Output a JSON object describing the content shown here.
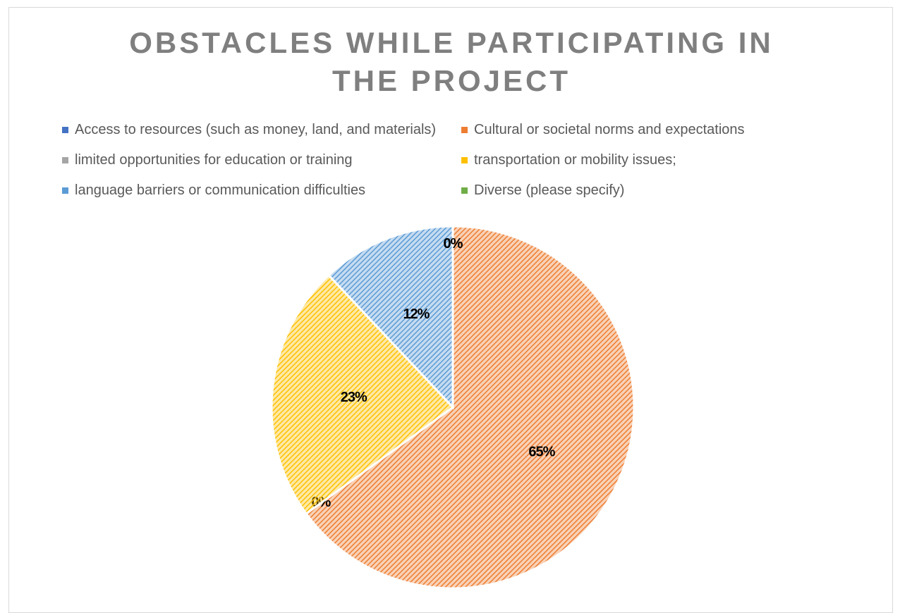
{
  "chart_data": {
    "type": "pie",
    "title": "OBSTACLES WHILE PARTICIPATING IN THE PROJECT",
    "categories": [
      "Access to resources (such as money, land, and materials)",
      "Cultural or societal norms and expectations",
      "limited opportunities for education or training",
      "transportation or mobility issues;",
      "language barriers or communication difficulties",
      "Diverse (please specify)"
    ],
    "values": [
      0,
      65,
      0,
      23,
      12,
      0
    ],
    "value_labels": [
      "0%",
      "65%",
      "0%",
      "23%",
      "12%",
      "0%"
    ],
    "colors": [
      "#4472c4",
      "#ed7d31",
      "#a5a5a5",
      "#ffc000",
      "#5b9bd5",
      "#70ad47"
    ],
    "legend": "top"
  }
}
